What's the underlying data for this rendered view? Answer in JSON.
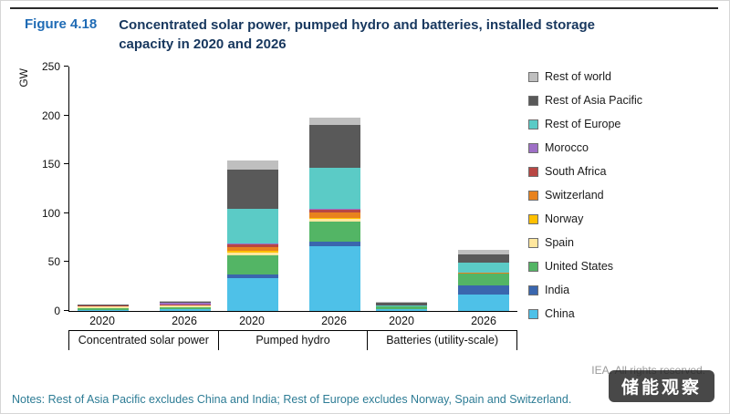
{
  "header": {
    "figure_label": "Figure 4.18",
    "title": "Concentrated solar power, pumped hydro and batteries, installed storage capacity in 2020 and 2026"
  },
  "notes": "Notes: Rest of Asia Pacific excludes China and India; Rest of Europe excludes Norway, Spain and Switzerland.",
  "credit": "IEA. All rights reserved.",
  "watermark": "储能观察",
  "colors": {
    "figure_label_blue": "#1f6bb5",
    "title_navy": "#17375e",
    "notes_teal": "#2d7c95"
  },
  "chart_data": {
    "type": "bar",
    "stacked": true,
    "title": "Concentrated solar power, pumped hydro and batteries, installed storage capacity in 2020 and 2026",
    "xlabel": "",
    "ylabel": "GW",
    "ylim": [
      0,
      250
    ],
    "yticks": [
      0,
      50,
      100,
      150,
      200,
      250
    ],
    "grid": false,
    "legend_position": "right",
    "groups": [
      {
        "label": "Concentrated solar power",
        "bars": [
          "2020",
          "2026"
        ]
      },
      {
        "label": "Pumped hydro",
        "bars": [
          "2020",
          "2026"
        ]
      },
      {
        "label": "Batteries (utility-scale)",
        "bars": [
          "2020",
          "2026"
        ]
      }
    ],
    "bar_columns": [
      "Concentrated solar power 2020",
      "Concentrated solar power 2026",
      "Pumped hydro 2020",
      "Pumped hydro 2026",
      "Batteries (utility-scale) 2020",
      "Batteries (utility-scale) 2026"
    ],
    "series_note": "series listed in legend order top-to-bottom; stacking order in bars is bottom-to-top reversed (China at bottom)",
    "series": [
      {
        "name": "Rest of world",
        "color": "#bfbfbf",
        "values": [
          0.3,
          0.8,
          9,
          7,
          1,
          4
        ]
      },
      {
        "name": "Rest of Asia Pacific",
        "color": "#595959",
        "values": [
          0.3,
          0.5,
          40,
          44,
          2.5,
          9
        ]
      },
      {
        "name": "Rest of Europe",
        "color": "#5bcbc6",
        "values": [
          0.3,
          0.5,
          36,
          42,
          1.5,
          10
        ]
      },
      {
        "name": "Morocco",
        "color": "#9e6fc6",
        "values": [
          0.6,
          1.5,
          0.5,
          1,
          0,
          0
        ]
      },
      {
        "name": "South Africa",
        "color": "#b84743",
        "values": [
          0.5,
          0.6,
          3,
          3,
          0.1,
          0.3
        ]
      },
      {
        "name": "Switzerland",
        "color": "#e8821e",
        "values": [
          0,
          0,
          4,
          5,
          0,
          0.3
        ]
      },
      {
        "name": "Norway",
        "color": "#ffc000",
        "values": [
          0,
          0,
          1.5,
          1.5,
          0,
          0
        ]
      },
      {
        "name": "Spain",
        "color": "#ffe79e",
        "values": [
          2.3,
          2.3,
          3,
          3,
          0.1,
          0.5
        ]
      },
      {
        "name": "United States",
        "color": "#53b565",
        "values": [
          1.7,
          1.9,
          20,
          20,
          2.5,
          12
        ]
      },
      {
        "name": "India",
        "color": "#3a66ae",
        "values": [
          0.2,
          0.3,
          3,
          5,
          0.3,
          9
        ]
      },
      {
        "name": "China",
        "color": "#4ec1e8",
        "values": [
          0.5,
          1.5,
          34,
          66,
          1.5,
          17
        ]
      }
    ]
  }
}
